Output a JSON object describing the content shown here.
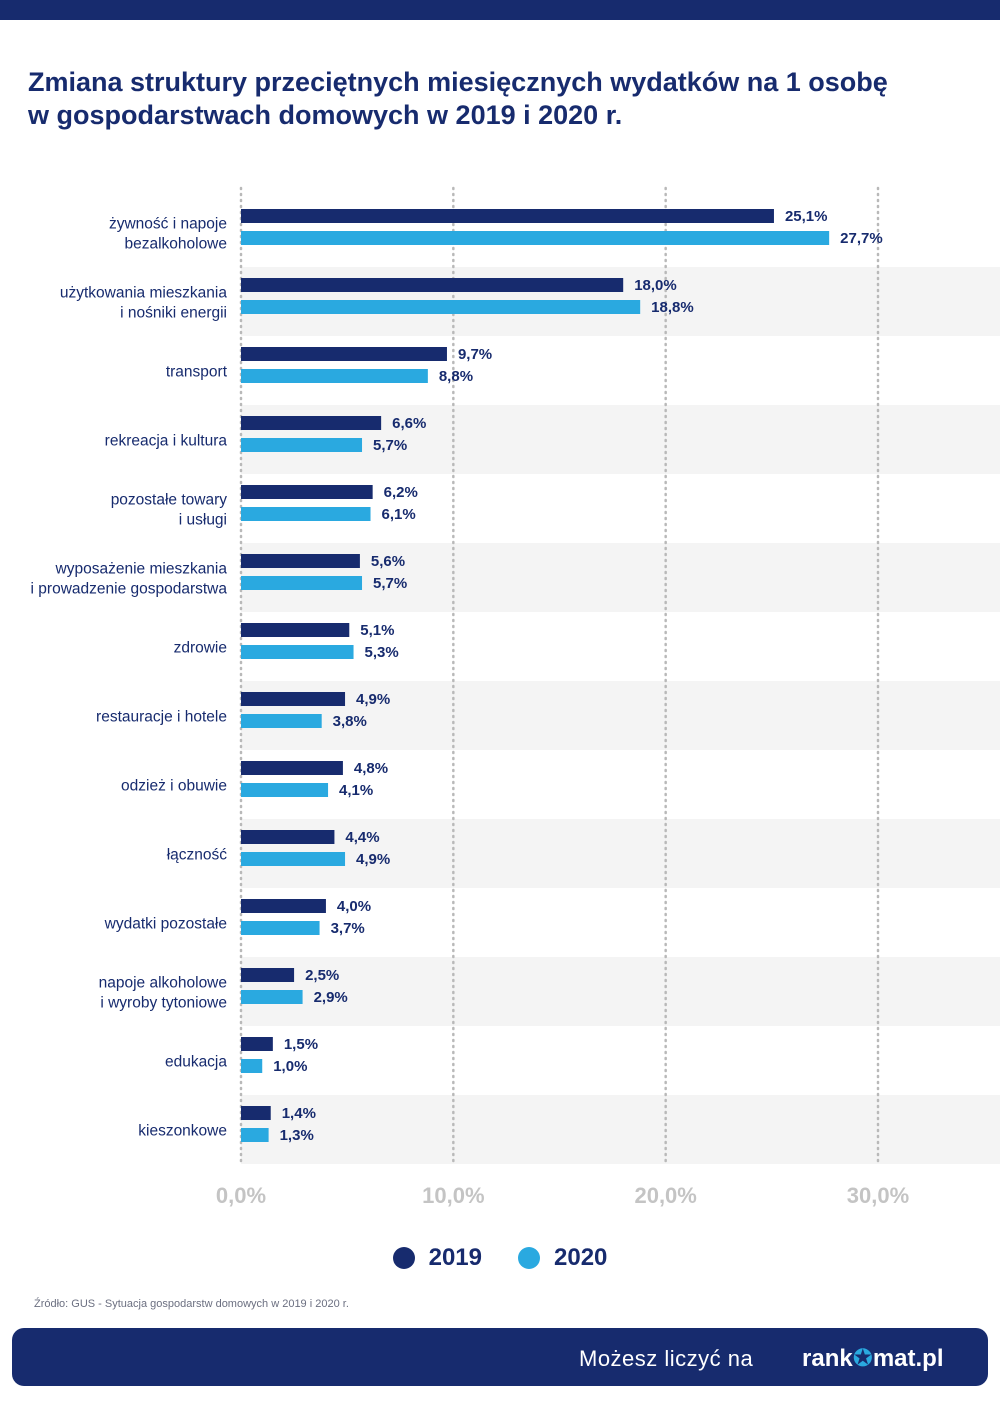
{
  "title_line1": "Zmiana struktury przeciętnych miesięcznych wydatków na 1 osobę",
  "title_line2": "w gospodarstwach domowych w 2019 i 2020 r.",
  "colors": {
    "navy": "#172b6e",
    "series_2019": "#172b6e",
    "series_2020": "#2aa9e0",
    "row_band": "#f4f4f4"
  },
  "chart_data": {
    "type": "bar",
    "orientation": "horizontal",
    "categories": [
      [
        "żywność i napoje",
        "bezalkoholowe"
      ],
      [
        "użytkowania mieszkania",
        "i nośniki energii"
      ],
      [
        "transport"
      ],
      [
        "rekreacja i kultura"
      ],
      [
        "pozostałe towary",
        "i usługi"
      ],
      [
        "wyposażenie mieszkania",
        "i prowadzenie gospodarstwa"
      ],
      [
        "zdrowie"
      ],
      [
        "restauracje i hotele"
      ],
      [
        "odzież i obuwie"
      ],
      [
        "łączność"
      ],
      [
        "wydatki pozostałe"
      ],
      [
        "napoje alkoholowe",
        "i wyroby tytoniowe"
      ],
      [
        "edukacja"
      ],
      [
        "kieszonkowe"
      ]
    ],
    "series": [
      {
        "name": "2019",
        "values": [
          25.1,
          18.0,
          9.7,
          6.6,
          6.2,
          5.6,
          5.1,
          4.9,
          4.8,
          4.4,
          4.0,
          2.5,
          1.5,
          1.4
        ],
        "labels": [
          "25,1%",
          "18,0%",
          "9,7%",
          "6,6%",
          "6,2%",
          "5,6%",
          "5,1%",
          "4,9%",
          "4,8%",
          "4,4%",
          "4,0%",
          "2,5%",
          "1,5%",
          "1,4%"
        ]
      },
      {
        "name": "2020",
        "values": [
          27.7,
          18.8,
          8.8,
          5.7,
          6.1,
          5.7,
          5.3,
          3.8,
          4.1,
          4.9,
          3.7,
          2.9,
          1.0,
          1.3
        ],
        "labels": [
          "27,7%",
          "18,8%",
          "8,8%",
          "5,7%",
          "6,1%",
          "5,7%",
          "5,3%",
          "3,8%",
          "4,1%",
          "4,9%",
          "3,7%",
          "2,9%",
          "1,0%",
          "1,3%"
        ]
      }
    ],
    "xlim": [
      0,
      30
    ],
    "xticks": [
      0,
      10,
      20,
      30
    ],
    "xtick_labels": [
      "0,0%",
      "10,0%",
      "20,0%",
      "30,0%"
    ],
    "grid": true,
    "legend": "bottom-center"
  },
  "legend": {
    "label_2019": "2019",
    "label_2020": "2020"
  },
  "source": "Źródło: GUS - Sytuacja gospodarstw domowych w 2019 i 2020 r.",
  "footer": {
    "tagline": "Możesz liczyć na",
    "brand_prefix": "rank",
    "brand_star": "✪",
    "brand_suffix": "mat.pl"
  }
}
